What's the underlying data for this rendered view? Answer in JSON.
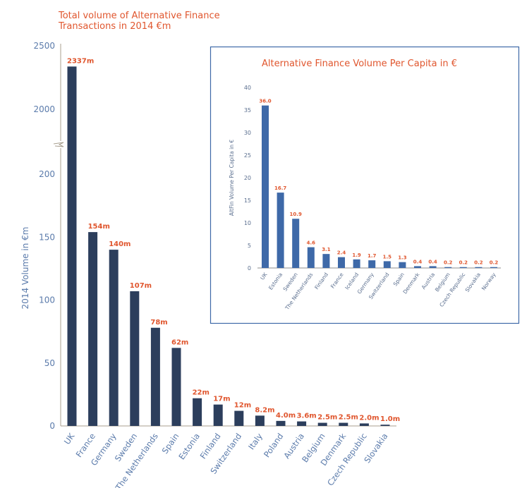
{
  "chart_data": [
    {
      "type": "bar",
      "title_lines": [
        "Total volume of Alternative Finance",
        "Transactions in 2014 €m"
      ],
      "xlabel": "",
      "ylabel": "2014 Volume in  €m",
      "axis_break": true,
      "yticks_lower": [
        0,
        50,
        100,
        150,
        200
      ],
      "yticks_upper": [
        2000,
        2500
      ],
      "ylim": [
        0,
        2500
      ],
      "categories": [
        "UK",
        "France",
        "Germany",
        "Sweden",
        "The Netherlands",
        "Spain",
        "Estonia",
        "Finland",
        "Switzerland",
        "Italy",
        "Poland",
        "Austria",
        "Belgium",
        "Denmark",
        "Czech Republic",
        "Slovakia"
      ],
      "values": [
        2337,
        154,
        140,
        107,
        78,
        62,
        22,
        17,
        12,
        8.2,
        4.0,
        3.6,
        2.5,
        2.5,
        2.0,
        1.0
      ],
      "data_labels": [
        "2337m",
        "154m",
        "140m",
        "107m",
        "78m",
        "62m",
        "22m",
        "17m",
        "12m",
        "8.2m",
        "4.0m",
        "3.6m",
        "2.5m",
        "2.5m",
        "2.0m",
        "1.0m"
      ],
      "bar_color": "#2c3e5c",
      "label_color": "#e0562e"
    },
    {
      "type": "bar",
      "title": "Alternative Finance Volume Per Capita in €",
      "xlabel": "",
      "ylabel": "AltFin  Volume Per Capita in €",
      "yticks": [
        0,
        5,
        10,
        15,
        20,
        25,
        30,
        35,
        40
      ],
      "ylim": [
        0,
        40
      ],
      "categories": [
        "UK",
        "Estonia",
        "Sweden",
        "The Netherlands",
        "Finland",
        "France",
        "Iceland",
        "Germany",
        "Switzerland",
        "Spain",
        "Denmark",
        "Austria",
        "Belgium",
        "Czech Republic",
        "Slovakia",
        "Norway"
      ],
      "values": [
        36.0,
        16.7,
        10.9,
        4.6,
        3.1,
        2.4,
        1.9,
        1.7,
        1.5,
        1.3,
        0.4,
        0.4,
        0.2,
        0.2,
        0.2,
        0.2
      ],
      "data_labels": [
        "36.0",
        "16.7",
        "10.9",
        "4.6",
        "3.1",
        "2.4",
        "1.9",
        "1.7",
        "1.5",
        "1.3",
        "0.4",
        "0.4",
        "0.2",
        "0.2",
        "0.2",
        "0.2"
      ],
      "bar_color": "#3e69a8",
      "label_color": "#e0562e",
      "border_color": "#3e69a8"
    }
  ]
}
